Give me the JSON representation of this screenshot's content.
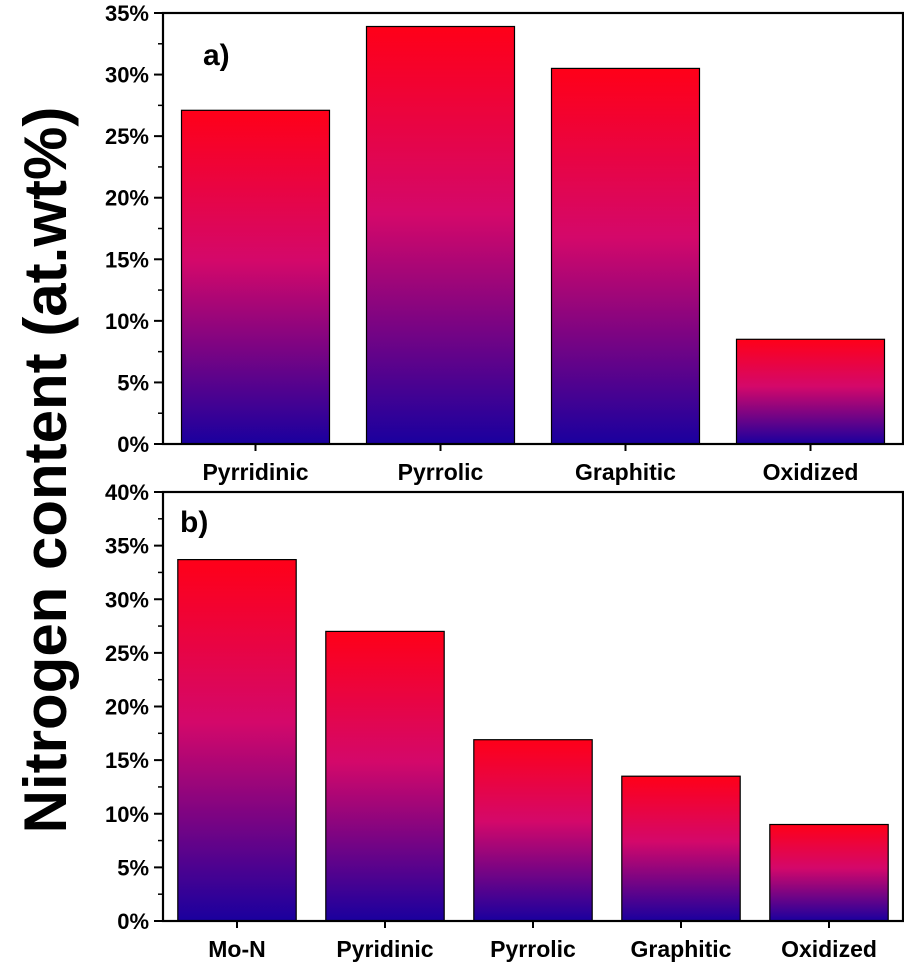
{
  "ylabel": "Nitrogen content (at.wt%)",
  "colors": {
    "bar_top": "#ff0018",
    "bar_mid": "#d4086a",
    "bar_bottom": "#1a009e",
    "axis": "#000000"
  },
  "chart_data": [
    {
      "type": "bar",
      "panel_label": "a)",
      "categories": [
        "Pyrridinic",
        "Pyrrolic",
        "Graphitic",
        "Oxidized"
      ],
      "values": [
        27.1,
        33.9,
        30.5,
        8.5
      ],
      "ylim": [
        0,
        35
      ],
      "yticks": [
        0,
        5,
        10,
        15,
        20,
        25,
        30,
        35
      ],
      "ytick_labels": [
        "0%",
        "5%",
        "10%",
        "15%",
        "20%",
        "25%",
        "30%",
        "35%"
      ],
      "grid": false
    },
    {
      "type": "bar",
      "panel_label": "b)",
      "categories": [
        "Mo-N",
        "Pyridinic",
        "Pyrrolic",
        "Graphitic",
        "Oxidized"
      ],
      "values": [
        33.7,
        27.0,
        16.9,
        13.5,
        9.0
      ],
      "ylim": [
        0,
        40
      ],
      "yticks": [
        0,
        5,
        10,
        15,
        20,
        25,
        30,
        35,
        40
      ],
      "ytick_labels": [
        "0%",
        "5%",
        "10%",
        "15%",
        "20%",
        "25%",
        "30%",
        "35%",
        "40%"
      ],
      "grid": false
    }
  ]
}
